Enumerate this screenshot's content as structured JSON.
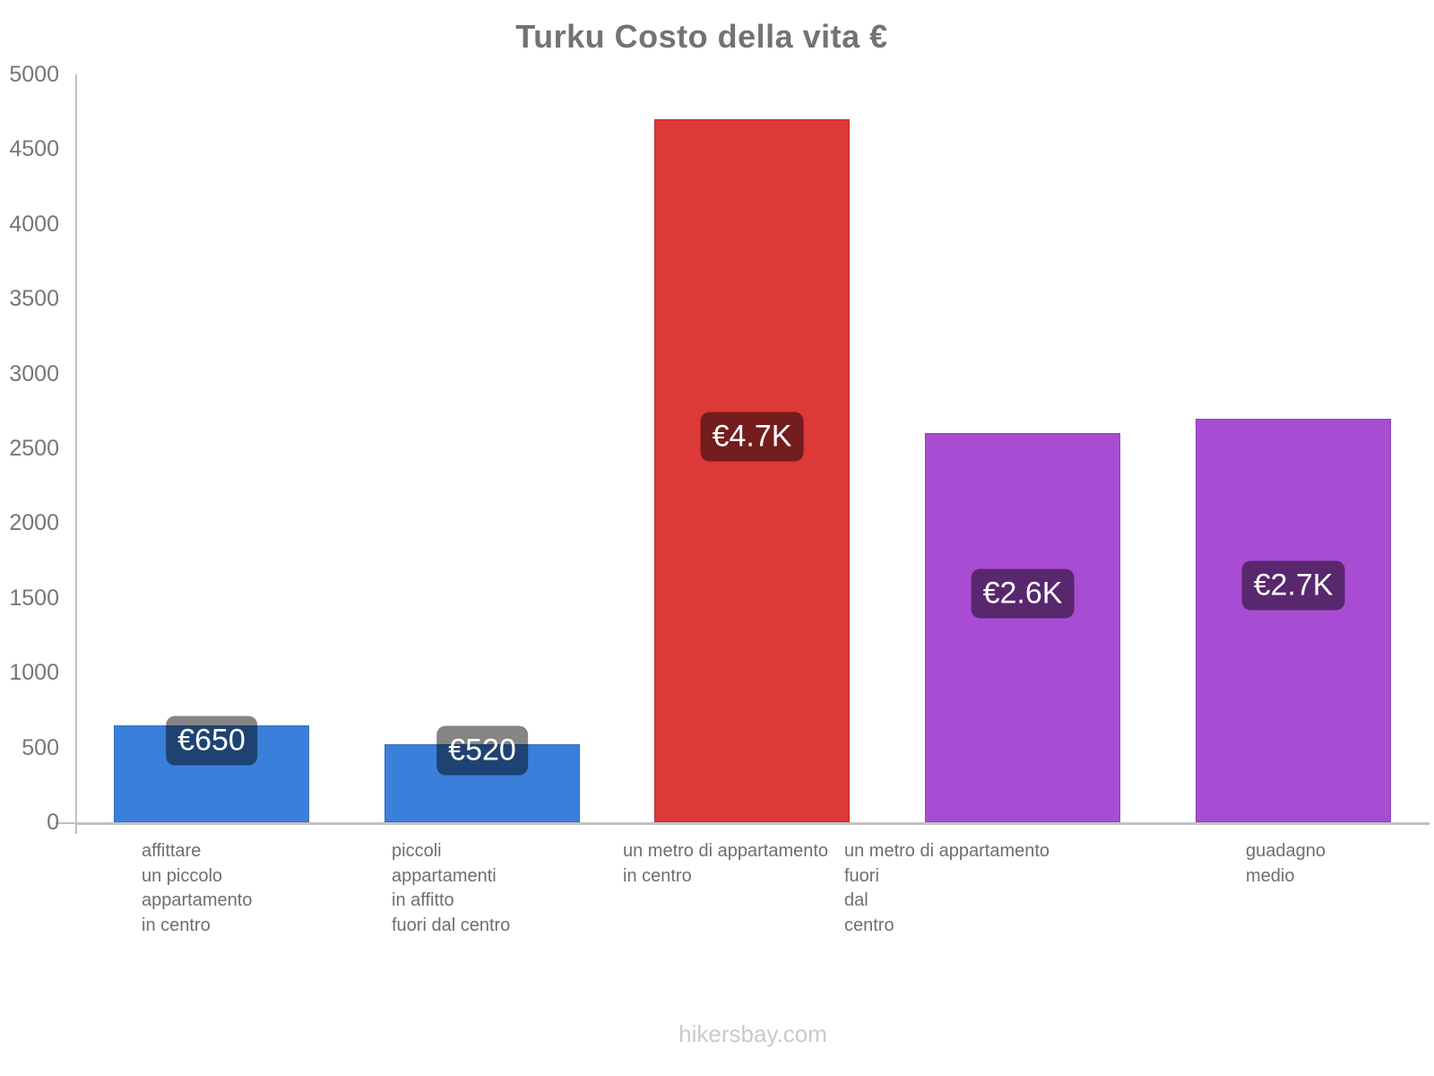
{
  "title": "Turku Costo della vita €",
  "watermark": "hikersbay.com",
  "colors": {
    "blue_bar": "#3a80db",
    "red_bar": "#dc3938",
    "purple_bar": "#a94cd4",
    "axis": "#c2c2c2",
    "title_text": "#737373",
    "tick_text": "#767676",
    "category_text": "#6e6e6e",
    "watermark_text": "#c9c9d1",
    "badge_bg": "rgba(0,0,0,0.48)",
    "badge_text": "#ffffff"
  },
  "chart_data": {
    "type": "bar",
    "title": "Turku Costo della vita €",
    "xlabel": "",
    "ylabel": "",
    "ylim": [
      0,
      5000
    ],
    "yticks": [
      0,
      500,
      1000,
      1500,
      2000,
      2500,
      3000,
      3500,
      4000,
      4500,
      5000
    ],
    "grid": false,
    "legend": false,
    "categories": [
      "affittare un piccolo appartamento in centro",
      "piccoli appartamenti in affitto fuori dal centro",
      "un metro di appartamento in centro",
      "un metro di appartamento fuori dal centro",
      "guadagno medio"
    ],
    "category_lines": [
      [
        "affittare",
        "un piccolo",
        "appartamento",
        "in centro"
      ],
      [
        "piccoli",
        "appartamenti",
        "in affitto",
        "fuori dal centro"
      ],
      [
        "un metro di appartamento",
        "in centro"
      ],
      [
        "un metro di appartamento",
        "fuori",
        "dal",
        "centro"
      ],
      [
        "guadagno",
        "medio"
      ]
    ],
    "values": [
      650,
      520,
      4700,
      2600,
      2700
    ],
    "value_labels": [
      "€650",
      "€520",
      "€4.7K",
      "€2.6K",
      "€2.7K"
    ],
    "bar_colors": [
      "#3a80db",
      "#3a80db",
      "#dc3938",
      "#a94cd4",
      "#a94cd4"
    ]
  }
}
